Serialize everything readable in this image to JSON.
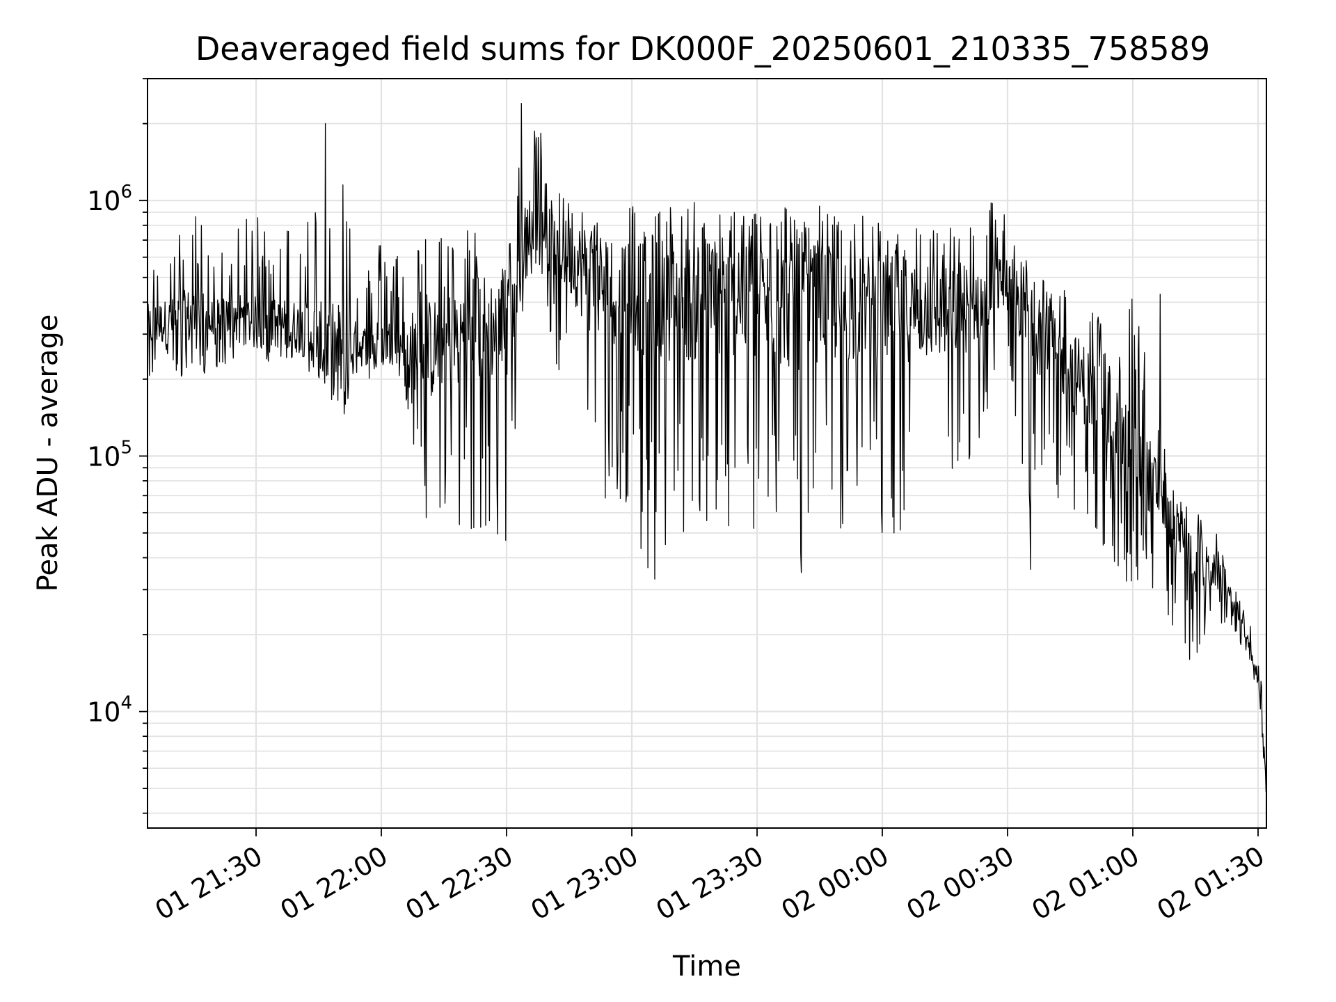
{
  "chart_data": {
    "type": "line",
    "title": "Deaveraged field sums for DK000F_20250601_210335_758589",
    "xlabel": "Time",
    "ylabel": "Peak ADU - average",
    "yscale": "log",
    "xlim": [
      "01 21:04",
      "02 01:32"
    ],
    "ylim": [
      3500,
      3000000
    ],
    "grid": true,
    "line_color": "#000000",
    "x_tick_labels": [
      "01 21:30",
      "01 22:00",
      "01 22:30",
      "01 23:00",
      "01 23:30",
      "02 00:00",
      "02 00:30",
      "02 01:00",
      "02 01:30"
    ],
    "y_ticks": [
      {
        "value": 1000000,
        "base": "10",
        "exp": "6"
      },
      {
        "value": 100000,
        "base": "10",
        "exp": "5"
      },
      {
        "value": 10000,
        "base": "10",
        "exp": "4"
      }
    ],
    "series": [
      {
        "x": [
          "01 21:04",
          "01 21:10",
          "01 21:15",
          "01 21:20",
          "01 21:25",
          "01 21:30",
          "01 21:35",
          "01 21:40",
          "01 21:45",
          "01 21:50",
          "01 21:55",
          "01 22:00",
          "01 22:05",
          "01 22:10",
          "01 22:15",
          "01 22:20",
          "01 22:25",
          "01 22:30",
          "01 22:35",
          "01 22:40",
          "01 22:45",
          "01 22:50",
          "01 22:55",
          "01 23:00",
          "01 23:05",
          "01 23:10",
          "01 23:15",
          "01 23:20",
          "01 23:25",
          "01 23:30",
          "01 23:35",
          "01 23:40",
          "01 23:45",
          "01 23:50",
          "01 23:55",
          "02 00:00",
          "02 00:05",
          "02 00:10",
          "02 00:15",
          "02 00:20",
          "02 00:25",
          "02 00:30",
          "02 00:35",
          "02 00:40",
          "02 00:45",
          "02 00:50",
          "02 00:55",
          "02 01:00",
          "02 01:05",
          "02 01:10",
          "02 01:15",
          "02 01:20",
          "02 01:25",
          "02 01:30",
          "02 01:32"
        ],
        "y_center": [
          320000,
          340000,
          350000,
          330000,
          360000,
          330000,
          330000,
          320000,
          300000,
          250000,
          270000,
          280000,
          280000,
          250000,
          280000,
          300000,
          320000,
          300000,
          800000,
          700000,
          600000,
          500000,
          450000,
          450000,
          420000,
          400000,
          400000,
          420000,
          400000,
          380000,
          400000,
          380000,
          400000,
          380000,
          380000,
          380000,
          380000,
          370000,
          360000,
          380000,
          420000,
          500000,
          350000,
          280000,
          220000,
          180000,
          140000,
          100000,
          80000,
          50000,
          38000,
          35000,
          25000,
          14000,
          5000
        ],
        "y_high": [
          650000,
          670000,
          950000,
          700000,
          750000,
          950000,
          800000,
          850000,
          1050000,
          2000000,
          500000,
          720000,
          650000,
          750000,
          800000,
          850000,
          700000,
          650000,
          2400000,
          1650000,
          1000000,
          990000,
          1000000,
          1000000,
          1000000,
          1000000,
          990000,
          1000000,
          950000,
          950000,
          1000000,
          1000000,
          970000,
          900000,
          880000,
          850000,
          830000,
          820000,
          800000,
          850000,
          1050000,
          900000,
          600000,
          500000,
          450000,
          380000,
          320000,
          430000,
          180000,
          70000,
          75000,
          50000,
          30000,
          18000,
          8000
        ],
        "y_low": [
          200000,
          210000,
          180000,
          220000,
          230000,
          230000,
          220000,
          210000,
          200000,
          125000,
          180000,
          220000,
          200000,
          48000,
          65000,
          47000,
          40000,
          45000,
          500000,
          300000,
          150000,
          55000,
          60000,
          50000,
          33000,
          50000,
          45000,
          40000,
          50000,
          45000,
          35000,
          38000,
          45000,
          50000,
          55000,
          48000,
          50000,
          65000,
          70000,
          80000,
          140000,
          300000,
          35000,
          80000,
          55000,
          45000,
          40000,
          28000,
          30000,
          20000,
          16000,
          22000,
          20000,
          12000,
          4500
        ],
        "spikes": [
          {
            "x": "01 21:47",
            "y": 2000000
          },
          {
            "x": "01 22:34",
            "y": 2400000
          },
          {
            "x": "01 23:06",
            "y": 33000
          },
          {
            "x": "01 23:41",
            "y": 35000
          },
          {
            "x": "02 00:36",
            "y": 36000
          },
          {
            "x": "02 01:07",
            "y": 430000
          },
          {
            "x": "02 01:14",
            "y": 16000
          }
        ]
      }
    ]
  }
}
